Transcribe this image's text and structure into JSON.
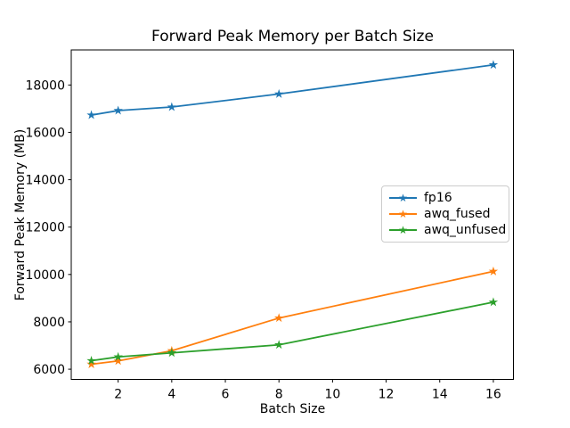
{
  "figure": {
    "title": "Forward Peak Memory per Batch Size"
  },
  "chart_data": {
    "type": "line",
    "title": "Forward Peak Memory per Batch Size",
    "xlabel": "Batch Size",
    "ylabel": "Forward Peak Memory (MB)",
    "x": [
      1,
      2,
      4,
      8,
      16
    ],
    "series": [
      {
        "name": "fp16",
        "color": "#1f77b4",
        "marker": "star",
        "values": [
          16730,
          16920,
          17070,
          17620,
          18850
        ]
      },
      {
        "name": "awq_fused",
        "color": "#ff7f0e",
        "marker": "star",
        "values": [
          6210,
          6350,
          6780,
          8160,
          10130
        ]
      },
      {
        "name": "awq_unfused",
        "color": "#2ca02c",
        "marker": "star",
        "values": [
          6360,
          6520,
          6690,
          7030,
          8830
        ]
      }
    ],
    "xlim": [
      0.25,
      16.75
    ],
    "ylim": [
      5570,
      19480
    ],
    "xticks": [
      2,
      4,
      6,
      8,
      10,
      12,
      14,
      16
    ],
    "yticks": [
      6000,
      8000,
      10000,
      12000,
      14000,
      16000,
      18000
    ],
    "grid": false,
    "legend_position": "center right",
    "axis_color": "#000000",
    "star_glyph": "★"
  }
}
